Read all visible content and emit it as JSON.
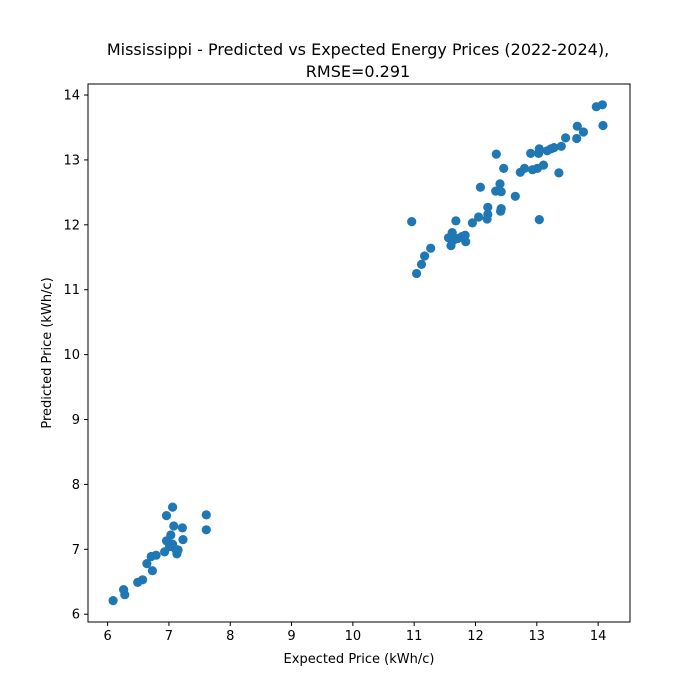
{
  "chart_data": {
    "type": "scatter",
    "title": [
      "Mississippi - Predicted vs Expected Energy Prices (2022-2024),",
      "RMSE=0.291"
    ],
    "xlabel": "Expected Price (kWh/c)",
    "ylabel": "Predicted Price (kWh/c)",
    "xlim": [
      5.68,
      14.52
    ],
    "ylim": [
      5.88,
      14.17
    ],
    "xticks": [
      6,
      7,
      8,
      9,
      10,
      11,
      12,
      13,
      14
    ],
    "yticks": [
      6,
      7,
      8,
      9,
      10,
      11,
      12,
      13,
      14
    ],
    "grid": false,
    "color": "#1f77b4",
    "points": [
      [
        6.09,
        6.21
      ],
      [
        6.26,
        6.38
      ],
      [
        6.28,
        6.3
      ],
      [
        6.49,
        6.49
      ],
      [
        6.57,
        6.53
      ],
      [
        6.64,
        6.78
      ],
      [
        6.71,
        6.89
      ],
      [
        6.73,
        6.67
      ],
      [
        6.79,
        6.91
      ],
      [
        6.93,
        6.96
      ],
      [
        6.96,
        7.52
      ],
      [
        6.96,
        7.13
      ],
      [
        7.01,
        7.04
      ],
      [
        7.03,
        7.22
      ],
      [
        7.06,
        7.65
      ],
      [
        7.06,
        7.08
      ],
      [
        7.08,
        7.36
      ],
      [
        7.11,
        7.0
      ],
      [
        7.13,
        6.93
      ],
      [
        7.15,
        6.99
      ],
      [
        7.22,
        7.33
      ],
      [
        7.23,
        7.15
      ],
      [
        7.61,
        7.53
      ],
      [
        7.61,
        7.3
      ],
      [
        10.96,
        12.05
      ],
      [
        11.04,
        11.25
      ],
      [
        11.12,
        11.39
      ],
      [
        11.17,
        11.52
      ],
      [
        11.27,
        11.64
      ],
      [
        11.56,
        11.8
      ],
      [
        11.6,
        11.68
      ],
      [
        11.62,
        11.88
      ],
      [
        11.65,
        11.77
      ],
      [
        11.68,
        12.06
      ],
      [
        11.71,
        11.79
      ],
      [
        11.78,
        11.82
      ],
      [
        11.83,
        11.84
      ],
      [
        11.84,
        11.74
      ],
      [
        11.95,
        12.03
      ],
      [
        12.05,
        12.12
      ],
      [
        12.08,
        12.58
      ],
      [
        12.19,
        12.09
      ],
      [
        12.2,
        12.27
      ],
      [
        12.2,
        12.16
      ],
      [
        12.33,
        12.52
      ],
      [
        12.34,
        13.09
      ],
      [
        12.4,
        12.63
      ],
      [
        12.41,
        12.21
      ],
      [
        12.42,
        12.51
      ],
      [
        12.42,
        12.25
      ],
      [
        12.46,
        12.87
      ],
      [
        12.65,
        12.44
      ],
      [
        12.73,
        12.81
      ],
      [
        12.8,
        12.87
      ],
      [
        12.9,
        13.1
      ],
      [
        12.93,
        12.85
      ],
      [
        13.01,
        12.87
      ],
      [
        13.03,
        13.1
      ],
      [
        13.04,
        13.17
      ],
      [
        13.04,
        12.08
      ],
      [
        13.11,
        12.92
      ],
      [
        13.17,
        13.14
      ],
      [
        13.23,
        13.17
      ],
      [
        13.28,
        13.19
      ],
      [
        13.36,
        12.8
      ],
      [
        13.4,
        13.21
      ],
      [
        13.47,
        13.34
      ],
      [
        13.65,
        13.33
      ],
      [
        13.66,
        13.52
      ],
      [
        13.76,
        13.43
      ],
      [
        13.97,
        13.82
      ],
      [
        14.07,
        13.85
      ],
      [
        14.08,
        13.53
      ]
    ]
  }
}
